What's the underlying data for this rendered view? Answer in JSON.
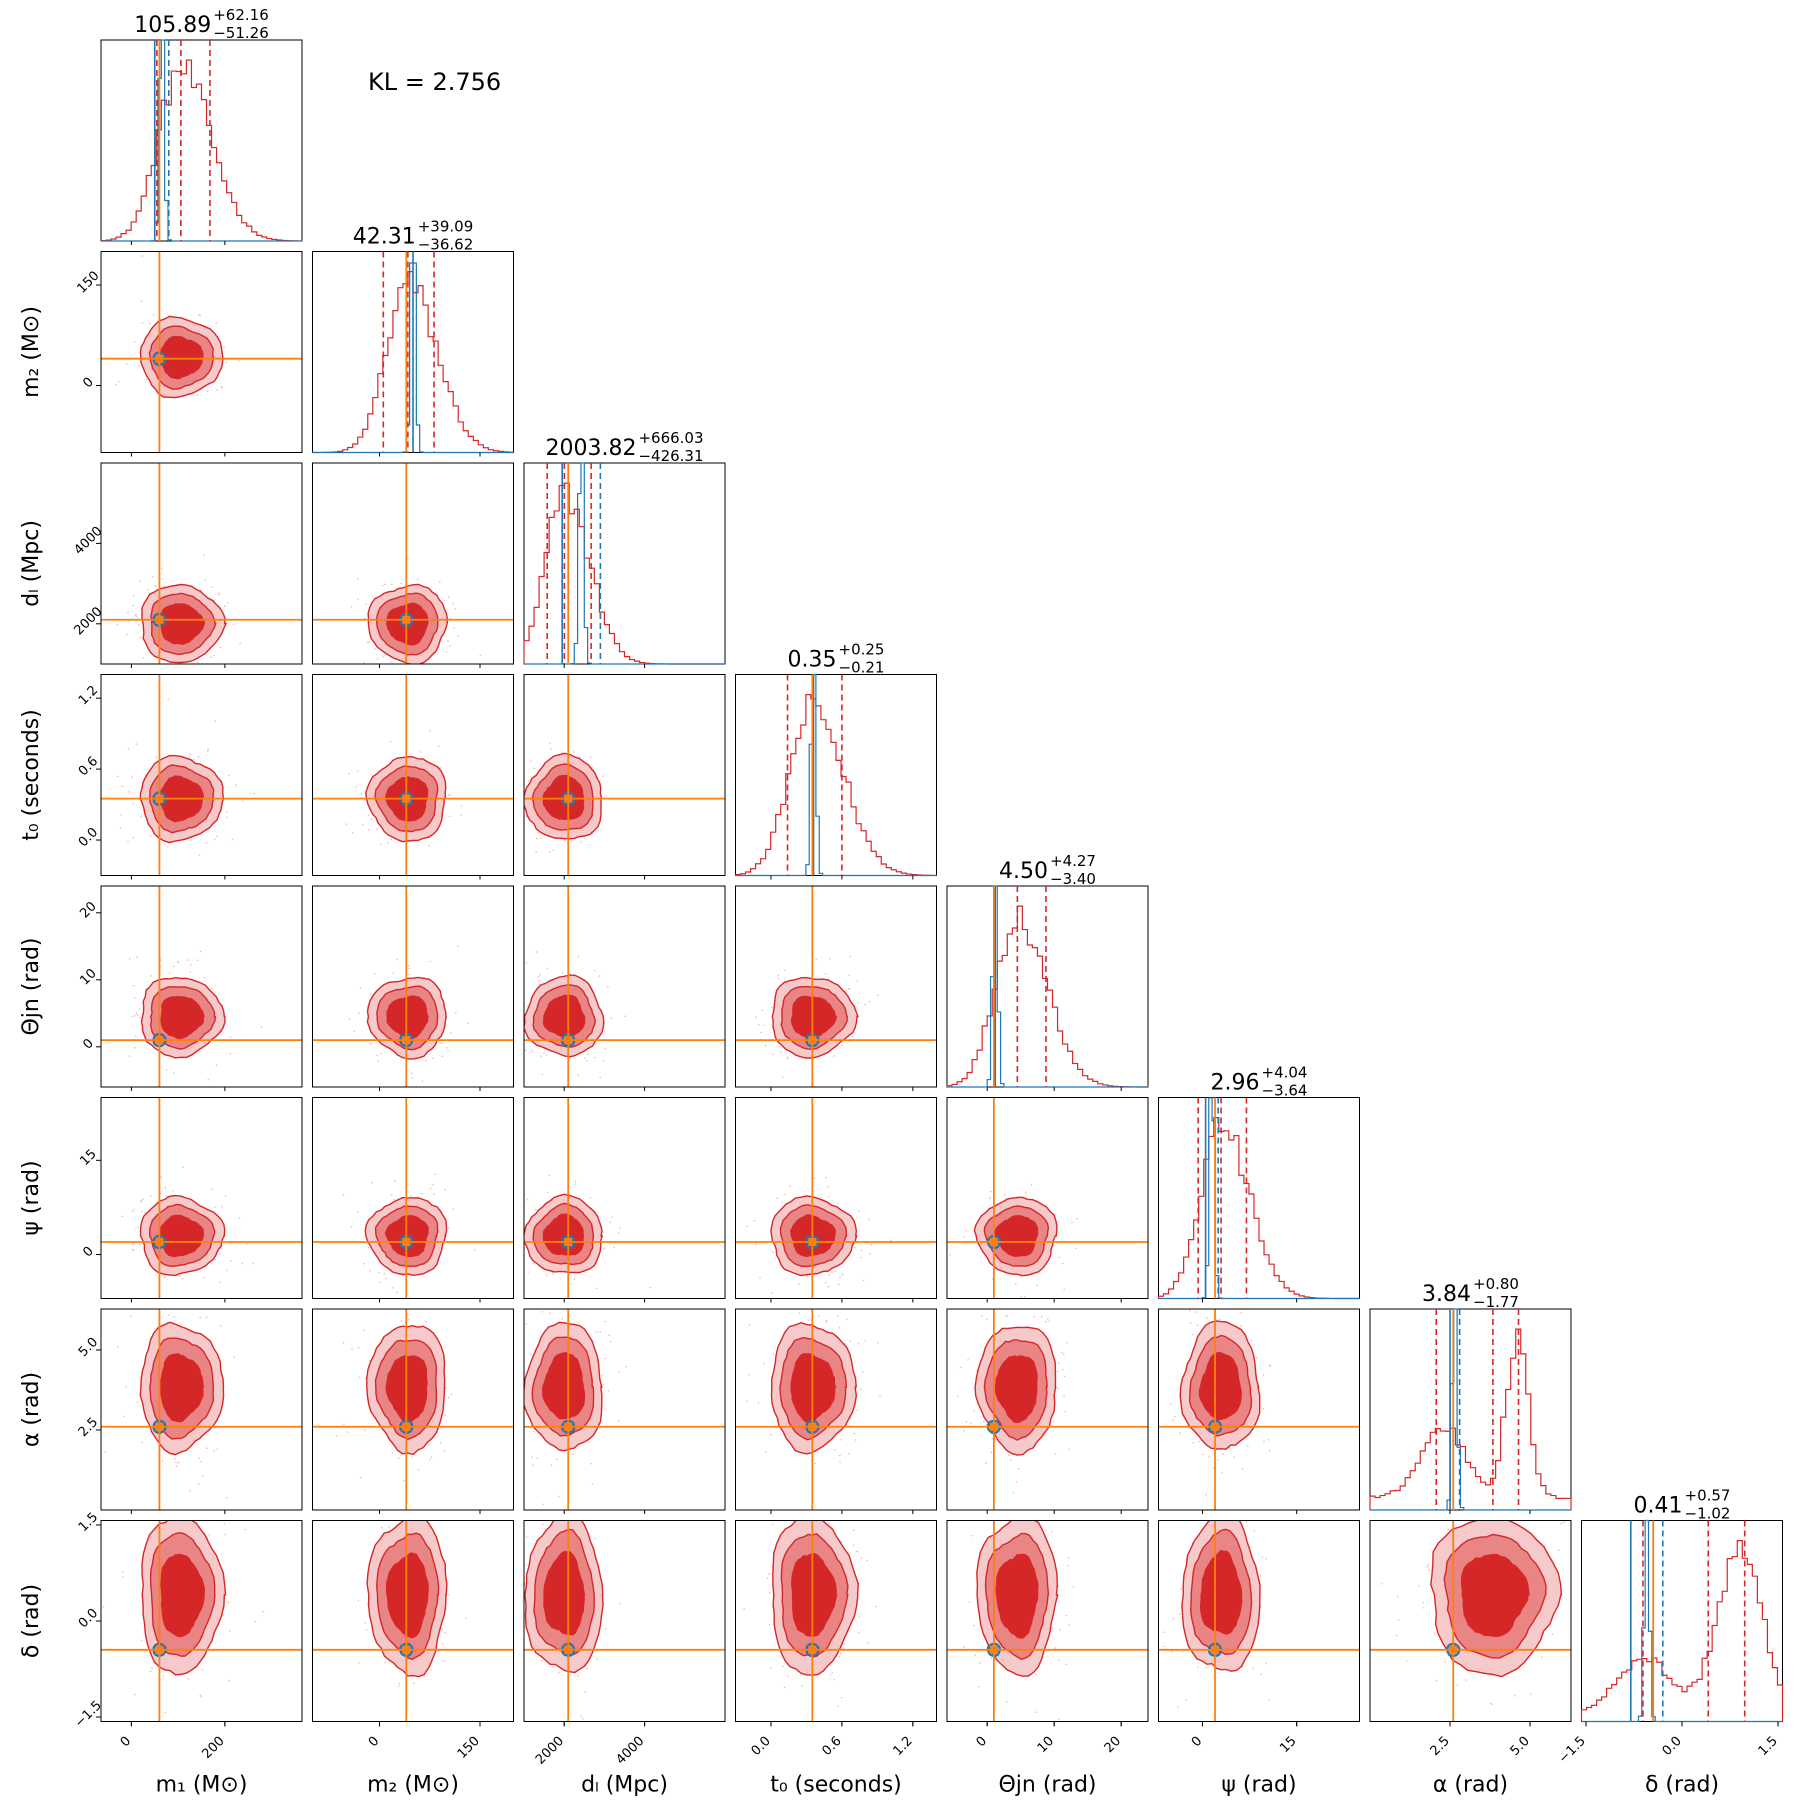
{
  "chart_data": {
    "type": "corner",
    "annotation": "KL = 2.756",
    "colors": {
      "posterior": "#d62728",
      "reference": "#1f77b4",
      "truth": "#ff7f0e"
    },
    "parameters": [
      {
        "id": "m1",
        "label": "m₁ (M⊙)",
        "range": [
          -65,
          365
        ],
        "ticks": [
          0,
          200
        ],
        "tick_labels": [
          "0",
          "200"
        ],
        "truth": 60,
        "median": 105.89,
        "title": {
          "value": "105.89",
          "plus": "+62.16",
          "minus": "−51.26"
        },
        "quantiles": [
          54.63,
          105.89,
          168.05
        ],
        "reference_lines": [
          50,
          80
        ]
      },
      {
        "id": "m2",
        "label": "m₂ (M⊙)",
        "range": [
          -100,
          200
        ],
        "ticks": [
          0,
          150
        ],
        "tick_labels": [
          "0",
          "150"
        ],
        "truth": 40,
        "median": 42.31,
        "title": {
          "value": "42.31",
          "plus": "+39.09",
          "minus": "−36.62"
        },
        "quantiles": [
          5.69,
          42.31,
          81.4
        ],
        "reference_lines": [
          50
        ]
      },
      {
        "id": "dL",
        "label": "dₗ (Mpc)",
        "range": [
          1000,
          6000
        ],
        "ticks": [
          2000,
          4000
        ],
        "tick_labels": [
          "2000",
          "4000"
        ],
        "truth": 2100,
        "median": 2003.82,
        "title": {
          "value": "2003.82",
          "plus": "+666.03",
          "minus": "−426.31"
        },
        "quantiles": [
          1577.51,
          2003.82,
          2669.85
        ],
        "reference_lines": [
          1950,
          2900
        ]
      },
      {
        "id": "t0",
        "label": "t₀ (seconds)",
        "range": [
          -0.3,
          1.4
        ],
        "ticks": [
          0.0,
          0.6,
          1.2
        ],
        "tick_labels": [
          "0.0",
          "0.6",
          "1.2"
        ],
        "truth": 0.35,
        "median": 0.35,
        "title": {
          "value": "0.35",
          "plus": "+0.25",
          "minus": "−0.21"
        },
        "quantiles": [
          0.14,
          0.35,
          0.6
        ],
        "reference_lines": [
          0.36
        ]
      },
      {
        "id": "theta_jn",
        "label": "Θjn (rad)",
        "range": [
          -6,
          24
        ],
        "ticks": [
          0,
          10,
          20
        ],
        "tick_labels": [
          "0",
          "10",
          "20"
        ],
        "truth": 1.0,
        "median": 4.5,
        "title": {
          "value": "4.50",
          "plus": "+4.27",
          "minus": "−3.40"
        },
        "quantiles": [
          1.1,
          4.5,
          8.77
        ],
        "reference_lines": [
          1.2
        ]
      },
      {
        "id": "psi",
        "label": "ψ (rad)",
        "range": [
          -7,
          25
        ],
        "ticks": [
          0,
          15
        ],
        "tick_labels": [
          "0",
          "15"
        ],
        "truth": 2.0,
        "median": 2.96,
        "title": {
          "value": "2.96",
          "plus": "+4.04",
          "minus": "−3.64"
        },
        "quantiles": [
          -0.68,
          2.96,
          7.0
        ],
        "reference_lines": [
          0.5,
          2.5
        ]
      },
      {
        "id": "alpha",
        "label": "α (rad)",
        "range": [
          0.0,
          6.28
        ],
        "ticks": [
          2.5,
          5.0
        ],
        "tick_labels": [
          "2.5",
          "5.0"
        ],
        "truth": 2.6,
        "median": 3.84,
        "title": {
          "value": "3.84",
          "plus": "+0.80",
          "minus": "−1.77"
        },
        "quantiles": [
          2.07,
          3.84,
          4.64
        ],
        "reference_lines": [
          2.5,
          2.8
        ]
      },
      {
        "id": "delta",
        "label": "δ (rad)",
        "range": [
          -1.57,
          1.57
        ],
        "ticks": [
          -1.5,
          0.0,
          1.5
        ],
        "tick_labels": [
          "−1.5",
          "0.0",
          "1.5"
        ],
        "truth": -0.45,
        "median": 0.41,
        "title": {
          "value": "0.41",
          "plus": "+0.57",
          "minus": "−1.02"
        },
        "quantiles": [
          -0.61,
          0.41,
          0.98
        ],
        "reference_lines": [
          -0.8,
          -0.3
        ]
      }
    ],
    "contours": {
      "levels": [
        "outer",
        "middle",
        "inner"
      ],
      "grid": "off"
    }
  }
}
